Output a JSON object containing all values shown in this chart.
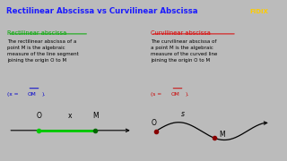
{
  "title": "Rectilinear Abscissa vs Curvilinear Abscissa",
  "title_color": "#1a1aff",
  "title_bg": "#ffff99",
  "left_heading": "Rectilinear abscissa",
  "left_heading_color": "#00aa00",
  "right_heading": "Curvilinear abscissa",
  "right_heading_color": "#dd0000",
  "diagram_left_bg": "#99ccaa",
  "diagram_right_bg": "#ffaaaa",
  "body_left": "The rectilinear abscissa of a\npoint M is the algebraic\nmeasure of the line segment\njoining the origin O to M",
  "body_right": "The curvilinear abscissa of\na point M is the algebraic\nmeasure of the curved line\njoining the origin O to M"
}
